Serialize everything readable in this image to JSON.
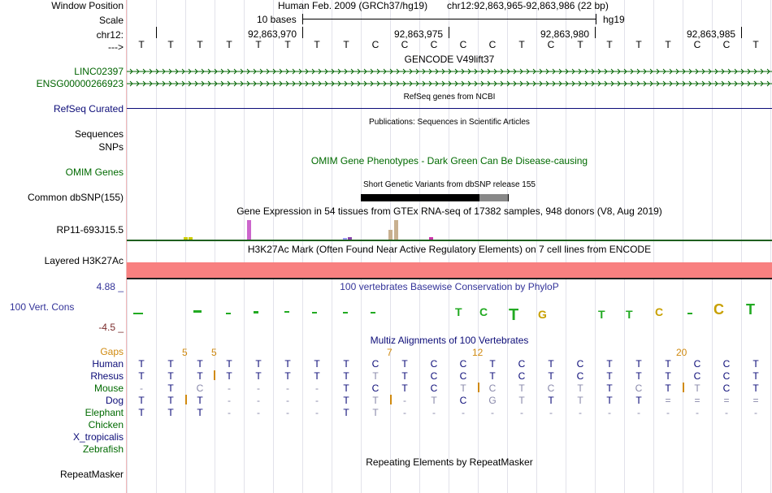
{
  "header": {
    "assembly": "Human Feb. 2009 (GRCh37/hg19)",
    "position": "chr12:92,863,965-92,863,986 (22 bp)",
    "scale_label": "10 bases",
    "scale_db": "hg19",
    "coords": [
      "92,863,970",
      "92,863,975",
      "92,863,980",
      "92,863,985"
    ],
    "strand_arrow": "--->"
  },
  "labels": {
    "window_position": "Window Position",
    "scale": "Scale",
    "chrom": "chr12:",
    "strand": "--->",
    "linc": "LINC02397",
    "ensg": "ENSG00000266923",
    "refseq": "RefSeq Curated",
    "sequences": "Sequences",
    "snps": "SNPs",
    "omim": "OMIM Genes",
    "dbsnp": "Common dbSNP(155)",
    "gtex_gene": "RP11-693J15.5",
    "h3k27ac": "Layered H3K27Ac",
    "phylop_max": "4.88 _",
    "phylop_name": "100 Vert. Cons",
    "phylop_min": "-4.5 _",
    "gaps": "Gaps",
    "human": "Human",
    "rhesus": "Rhesus",
    "mouse": "Mouse",
    "dog": "Dog",
    "elephant": "Elephant",
    "chicken": "Chicken",
    "xtrop": "X_tropicalis",
    "zebrafish": "Zebrafish",
    "repeatmasker": "RepeatMasker"
  },
  "tracks": {
    "gencode": "GENCODE V49lift37",
    "refseq": "RefSeq genes from NCBI",
    "publications": "Publications: Sequences in Scientific Articles",
    "omim": "OMIM Gene Phenotypes - Dark Green Can Be Disease-causing",
    "dbsnp": "Short Genetic Variants from dbSNP release 155",
    "gtex": "Gene Expression in 54 tissues from GTEx RNA-seq of 17382 samples, 948 donors (V8, Aug 2019)",
    "h3k27ac": "H3K27Ac Mark (Often Found Near Active Regulatory Elements) on 7 cell lines from ENCODE",
    "phylop": "100 vertebrates Basewise Conservation by PhyloP",
    "multiz": "Multiz Alignments of 100 Vertebrates",
    "repeatmasker": "Repeating Elements by RepeatMasker"
  },
  "sequence": [
    "T",
    "T",
    "T",
    "T",
    "T",
    "T",
    "T",
    "T",
    "C",
    "C",
    "C",
    "C",
    "C",
    "T",
    "C",
    "T",
    "T",
    "T",
    "T",
    "C",
    "C",
    "T"
  ],
  "alignment": {
    "gaps": [
      "5",
      "5",
      "7",
      "12",
      "20"
    ],
    "human": [
      "T",
      "T",
      "T",
      "T",
      "T",
      "T",
      "T",
      "T",
      "C",
      "T",
      "C",
      "C",
      "T",
      "C",
      "T",
      "C",
      "T",
      "T",
      "T",
      "C",
      "C",
      "T"
    ],
    "rhesus": [
      "T",
      "T",
      "T",
      "T",
      "T",
      "T",
      "T",
      "T",
      "T",
      "T",
      "C",
      "C",
      "T",
      "C",
      "T",
      "C",
      "T",
      "T",
      "T",
      "C",
      "C",
      "T"
    ],
    "mouse": [
      "-",
      "T",
      "C",
      "-",
      "-",
      "-",
      "-",
      "T",
      "C",
      "T",
      "C",
      "T",
      "C",
      "T",
      "C",
      "T",
      "T",
      "C",
      "T",
      "T",
      "C",
      "T"
    ],
    "dog": [
      "T",
      "T",
      "T",
      "-",
      "-",
      "-",
      "-",
      "T",
      "T",
      "-",
      "T",
      "C",
      "G",
      "T",
      "T",
      "T",
      "T",
      "T",
      "=",
      "=",
      "=",
      "="
    ],
    "elephant": [
      "T",
      "T",
      "T",
      "-",
      "-",
      "-",
      "-",
      "T",
      "T",
      "-",
      "-",
      "-",
      "-",
      "-",
      "-",
      "-",
      "-",
      "-",
      "-",
      "-",
      "-",
      "-"
    ]
  },
  "gtex_bars": [
    {
      "tissue_color": "#cccc00",
      "level": 0.12
    },
    {
      "tissue_color": "#cccc00",
      "level": 0.12
    },
    {
      "tissue_color": "#cc66cc",
      "level": 0.9
    },
    {
      "tissue_color": "#9999ff",
      "level": 0.08
    },
    {
      "tissue_color": "#8844aa",
      "level": 0.1
    },
    {
      "tissue_color": "#c8b090",
      "level": 0.45
    },
    {
      "tissue_color": "#c8b090",
      "level": 0.88
    },
    {
      "tissue_color": "#cc33aa",
      "level": 0.1
    }
  ],
  "colors": {
    "gencode": "#006400",
    "refseq": "#0c0c78",
    "omim": "#006a00",
    "h3k27ac": "#f88080",
    "phylop": "#333399",
    "gaps": "#d08a10"
  }
}
